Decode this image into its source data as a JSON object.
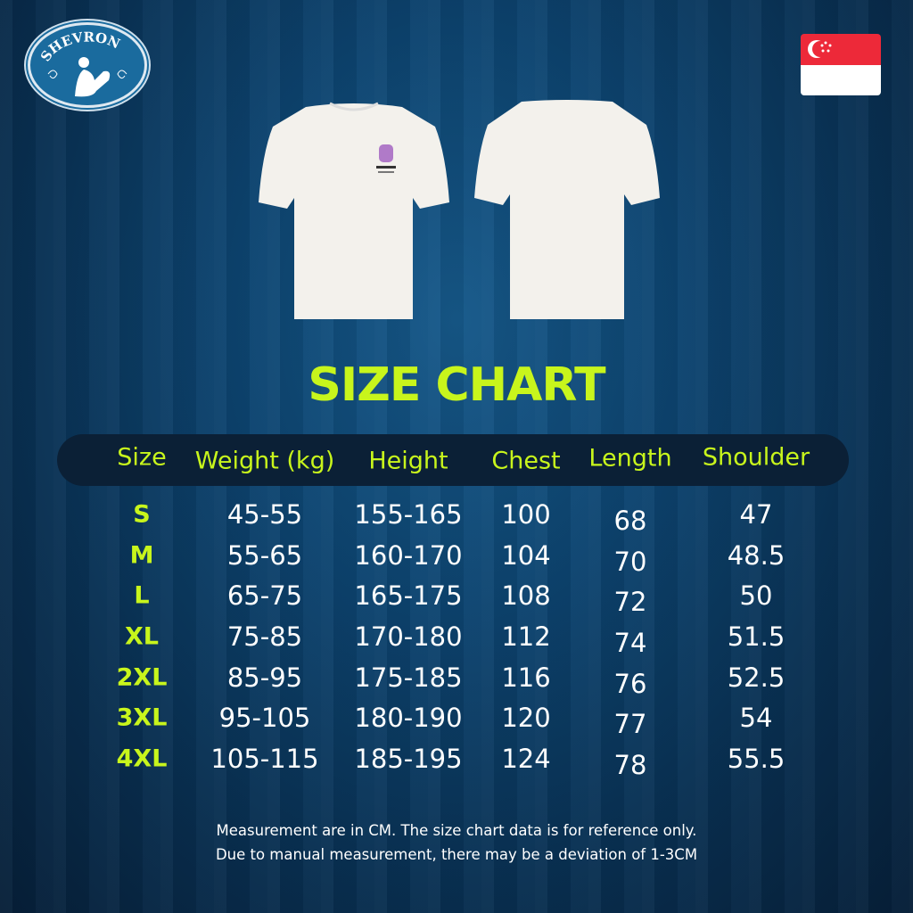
{
  "brand": {
    "logo_text": "SHEVRON"
  },
  "flag": "singapore-flag",
  "title": "SIZE CHART",
  "colors": {
    "accent": "#c8f51c",
    "header_bar": "#0b2036",
    "background": "#0d4470"
  },
  "table": {
    "headers": [
      "Size",
      "Weight (kg)",
      "Height",
      "Chest",
      "Length",
      "Shoulder"
    ],
    "rows": [
      [
        "S",
        "45-55",
        "155-165",
        "100",
        "68",
        "47"
      ],
      [
        "M",
        "55-65",
        "160-170",
        "104",
        "70",
        "48.5"
      ],
      [
        "L",
        "65-75",
        "165-175",
        "108",
        "72",
        "50"
      ],
      [
        "XL",
        "75-85",
        "170-180",
        "112",
        "74",
        "51.5"
      ],
      [
        "2XL",
        "85-95",
        "175-185",
        "116",
        "76",
        "52.5"
      ],
      [
        "3XL",
        "95-105",
        "180-190",
        "120",
        "77",
        "54"
      ],
      [
        "4XL",
        "105-115",
        "185-195",
        "124",
        "78",
        "55.5"
      ]
    ]
  },
  "notes": [
    "Measurement are in CM. The size chart data is for reference only.",
    "Due to manual measurement, there may be a deviation of 1-3CM"
  ]
}
